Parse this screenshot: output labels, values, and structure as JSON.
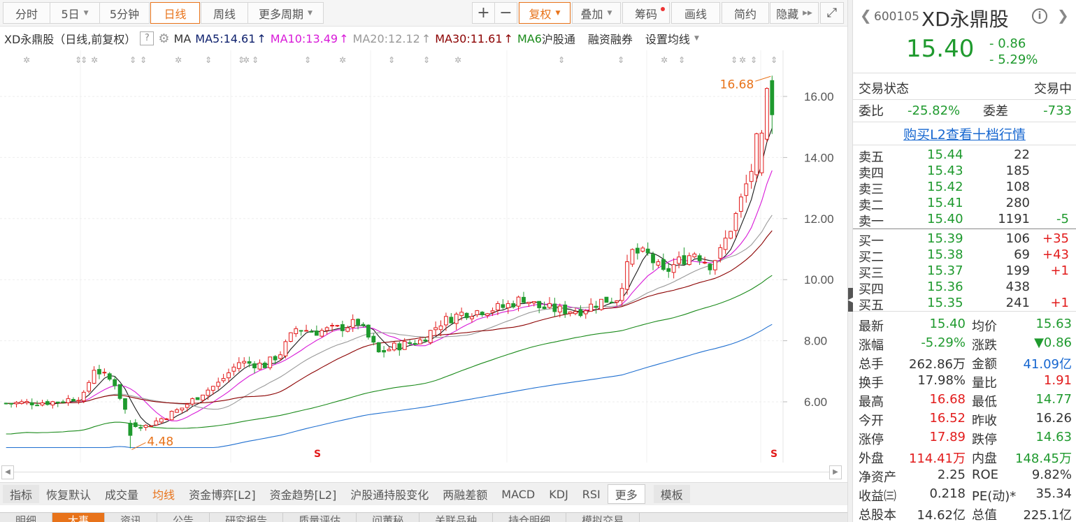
{
  "toolbar": {
    "tabs": [
      {
        "label": "分时"
      },
      {
        "label": "5日"
      },
      {
        "label": "5分钟"
      },
      {
        "label": "日线"
      },
      {
        "label": "周线"
      },
      {
        "label": "更多周期"
      }
    ],
    "plus": "+",
    "minus": "−",
    "fuquan": "复权",
    "diejia": "叠加",
    "chouma": "筹码",
    "huaxian": "画线",
    "jianyue": "简约",
    "yincang": "隐藏",
    "expand": "⤢"
  },
  "ma_bar": {
    "stock_title": "XD永鼎股（日线,前复权）",
    "help": "?",
    "ma_label": "MA",
    "ma5": "MA5:14.61",
    "ma10": "MA10:13.49",
    "ma20": "MA20:12.12",
    "ma30": "MA30:11.61",
    "ma_more": "MA6",
    "hugutong": "沪股通",
    "rongzi": "融资融券",
    "shezhi": "设置均线",
    "colors": {
      "ma5": "#1a1a1a",
      "ma10": "#d81ad8",
      "ma20": "#999999",
      "ma30": "#8b0000",
      "ma60": "#1a8a1a",
      "ma120": "#1f6fd0"
    }
  },
  "chart_data": {
    "type": "candlestick",
    "y_ticks": [
      "16.00",
      "14.00",
      "12.00",
      "10.00",
      "8.00",
      "6.00"
    ],
    "ylim": [
      4.0,
      17.2
    ],
    "high_label": "16.68",
    "low_label": "4.48",
    "dividend_marker": "S",
    "colors": {
      "up": "#e21b1b",
      "down": "#1f9a2e"
    }
  },
  "indicator_bar": {
    "items": [
      "指标",
      "恢复默认",
      "成交量",
      "均线",
      "资金博弈[L2]",
      "资金趋势[L2]",
      "沪股通持股变化",
      "两融差额",
      "MACD",
      "KDJ",
      "RSI",
      "更多",
      "模板"
    ]
  },
  "bottom_tabs": [
    "明细",
    "大事",
    "资讯",
    "公告",
    "研究报告",
    "质量评估",
    "问董秘",
    "关联品种",
    "持仓明细",
    "模拟交易"
  ],
  "quote": {
    "code": "600105",
    "name": "XD永鼎股",
    "price": "15.40",
    "change": "- 0.86",
    "change_pct": "- 5.29%",
    "status_label": "交易状态",
    "status_value": "交易中",
    "weibi_label": "委比",
    "weibi_value": "-25.82%",
    "weicha_label": "委差",
    "weicha_value": "-733",
    "l2_link": "购买L2查看十档行情",
    "asks": [
      {
        "label": "卖五",
        "price": "15.44",
        "vol": "22",
        "delta": ""
      },
      {
        "label": "卖四",
        "price": "15.43",
        "vol": "185",
        "delta": ""
      },
      {
        "label": "卖三",
        "price": "15.42",
        "vol": "108",
        "delta": ""
      },
      {
        "label": "卖二",
        "price": "15.41",
        "vol": "280",
        "delta": ""
      },
      {
        "label": "卖一",
        "price": "15.40",
        "vol": "1191",
        "delta": "-5"
      }
    ],
    "bids": [
      {
        "label": "买一",
        "price": "15.39",
        "vol": "106",
        "delta": "+35"
      },
      {
        "label": "买二",
        "price": "15.38",
        "vol": "69",
        "delta": "+43"
      },
      {
        "label": "买三",
        "price": "15.37",
        "vol": "199",
        "delta": "+1"
      },
      {
        "label": "买四",
        "price": "15.36",
        "vol": "438",
        "delta": ""
      },
      {
        "label": "买五",
        "price": "15.35",
        "vol": "241",
        "delta": "+1"
      }
    ],
    "stats": [
      {
        "l1": "最新",
        "v1": "15.40",
        "c1": "g",
        "l2": "均价",
        "v2": "15.63",
        "c2": "g"
      },
      {
        "l1": "涨幅",
        "v1": "-5.29%",
        "c1": "g",
        "l2": "涨跌",
        "v2": "▼0.86",
        "c2": "g"
      },
      {
        "l1": "总手",
        "v1": "262.86万",
        "c1": "b",
        "l2": "金额",
        "v2": "41.09亿",
        "c2": "bl"
      },
      {
        "l1": "换手",
        "v1": "17.98%",
        "c1": "b",
        "l2": "量比",
        "v2": "1.91",
        "c2": "r"
      },
      {
        "l1": "最高",
        "v1": "16.68",
        "c1": "r",
        "l2": "最低",
        "v2": "14.77",
        "c2": "g"
      },
      {
        "l1": "今开",
        "v1": "16.52",
        "c1": "r",
        "l2": "昨收",
        "v2": "16.26",
        "c2": "b"
      },
      {
        "l1": "涨停",
        "v1": "17.89",
        "c1": "r",
        "l2": "跌停",
        "v2": "14.63",
        "c2": "g"
      },
      {
        "l1": "外盘",
        "v1": "114.41万",
        "c1": "r",
        "l2": "内盘",
        "v2": "148.45万",
        "c2": "g"
      },
      {
        "l1": "净资产",
        "v1": "2.25",
        "c1": "b",
        "l2": "ROE",
        "v2": "9.82%",
        "c2": "b"
      },
      {
        "l1": "收益㈢",
        "v1": "0.218",
        "c1": "b",
        "l2": "PE(动)*",
        "v2": "35.34",
        "c2": "b"
      },
      {
        "l1": "总股本",
        "v1": "14.62亿",
        "c1": "b",
        "l2": "总值",
        "v2": "225.1亿",
        "c2": "b"
      }
    ]
  }
}
